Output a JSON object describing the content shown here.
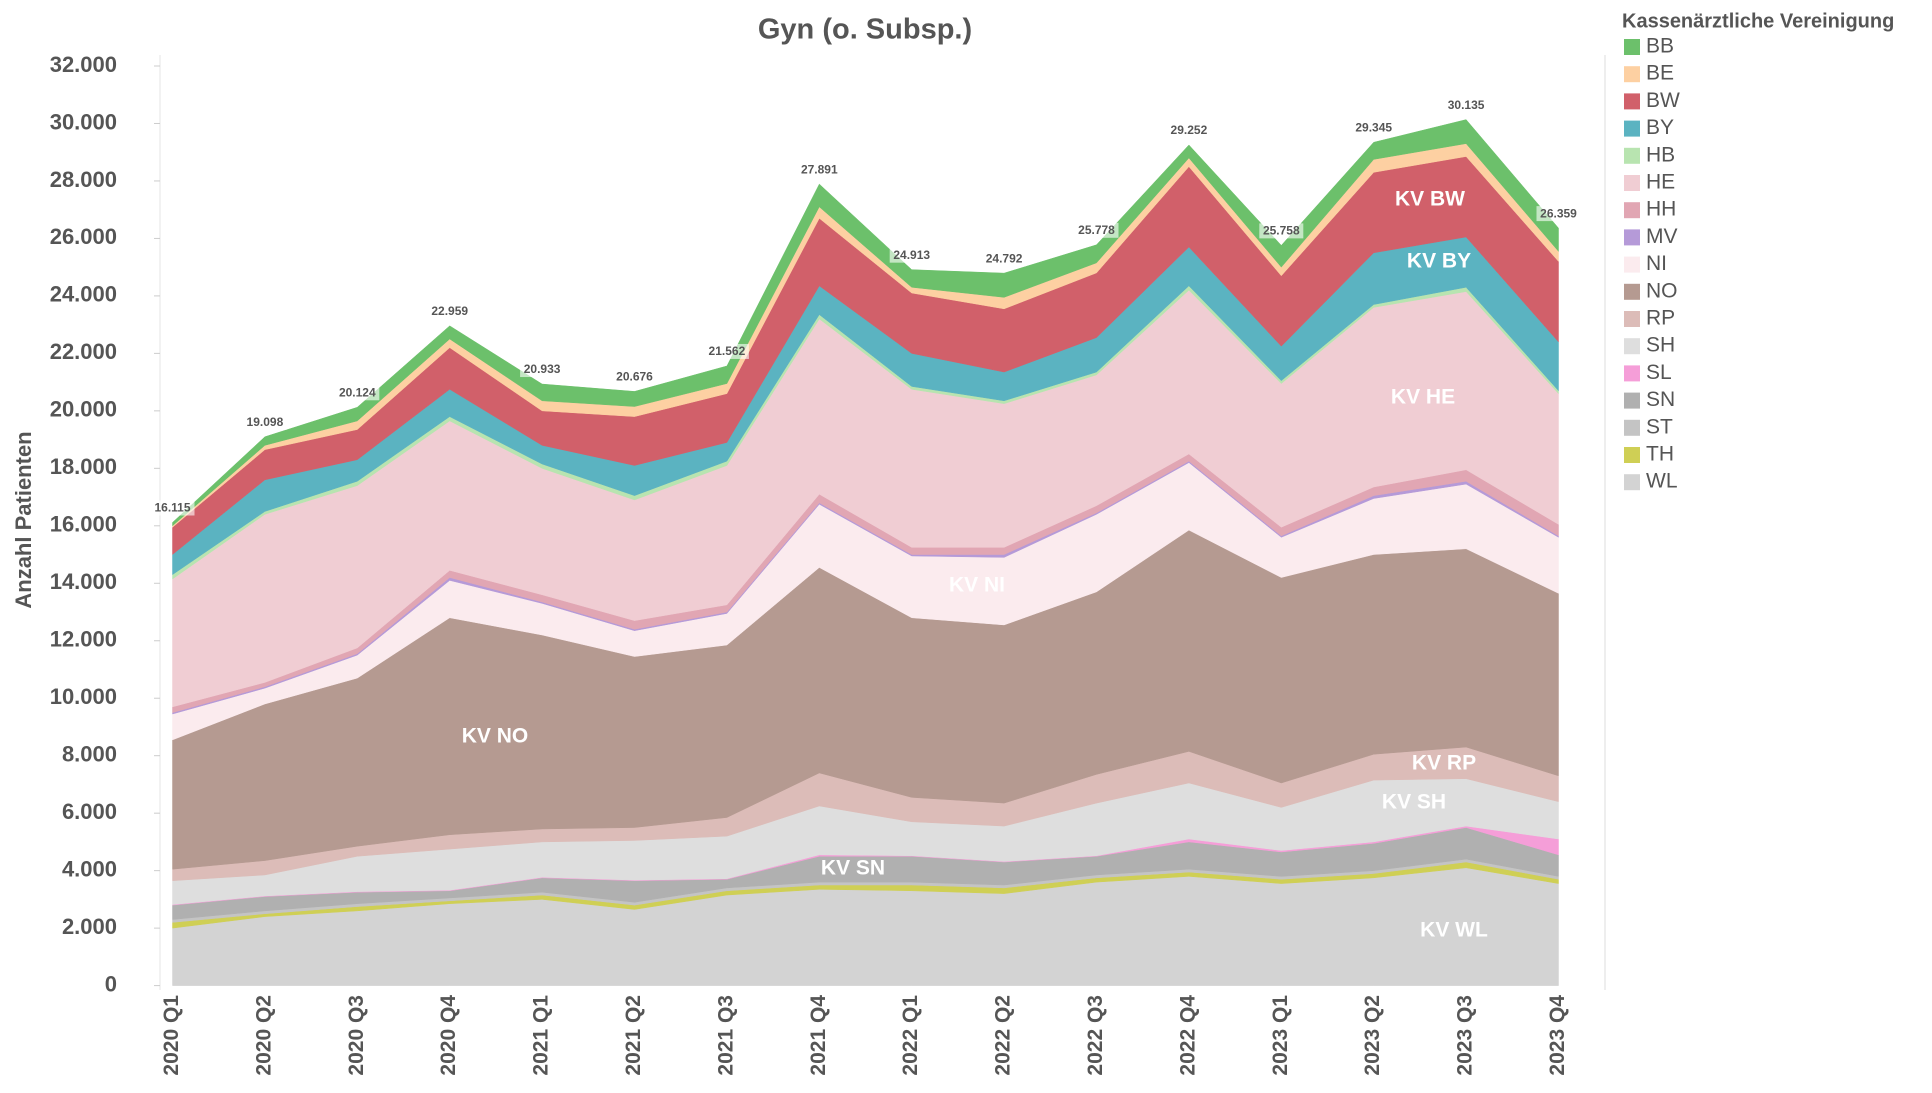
{
  "chart_data": {
    "type": "stacked_area",
    "title": "Gyn (o. Subsp.)",
    "y_label": "Anzahl Patienten",
    "legend_title": "Kassenärztliche Vereinigung",
    "legend": "right",
    "grid": false,
    "categories": [
      "2020 Q1",
      "2020 Q2",
      "2020 Q3",
      "2020 Q4",
      "2021 Q1",
      "2021 Q2",
      "2021 Q3",
      "2021 Q4",
      "2022 Q1",
      "2022 Q2",
      "2022 Q3",
      "2022 Q4",
      "2023 Q1",
      "2023 Q2",
      "2023 Q3",
      "2023 Q4"
    ],
    "ylim": [
      0,
      32000
    ],
    "yticks": [
      0,
      {
        "value": 2000,
        "label": "2.000"
      },
      {
        "value": 4000,
        "label": "4.000"
      },
      {
        "value": 6000,
        "label": "6.000"
      },
      {
        "value": 8000,
        "label": "8.000"
      },
      {
        "value": 10000,
        "label": "10.000"
      },
      {
        "value": 12000,
        "label": "12.000"
      },
      {
        "value": 14000,
        "label": "14.000"
      },
      {
        "value": 16000,
        "label": "16.000"
      },
      {
        "value": 18000,
        "label": "18.000"
      },
      {
        "value": 20000,
        "label": "20.000"
      },
      {
        "value": 22000,
        "label": "22.000"
      },
      {
        "value": 24000,
        "label": "24.000"
      },
      {
        "value": 26000,
        "label": "26.000"
      },
      {
        "value": 28000,
        "label": "28.000"
      },
      {
        "value": 30000,
        "label": "30.000"
      },
      {
        "value": 32000,
        "label": "32.000"
      }
    ],
    "series": [
      {
        "name": "BB",
        "color": "#6cc06b",
        "values": [
          115,
          298,
          474,
          459,
          583,
          526,
          612,
          791,
          613,
          842,
          628,
          452,
          758,
          595,
          835,
          809
        ]
      },
      {
        "name": "BE",
        "color": "#fdd0a2",
        "values": [
          50,
          150,
          300,
          300,
          350,
          350,
          350,
          400,
          200,
          400,
          350,
          300,
          300,
          450,
          450,
          350
        ]
      },
      {
        "name": "BW",
        "color": "#d1606a",
        "values": [
          950,
          1050,
          1050,
          1450,
          1200,
          1700,
          1700,
          2350,
          2100,
          2200,
          2250,
          2800,
          2450,
          2800,
          2800,
          2800
        ]
      },
      {
        "name": "BY",
        "color": "#5bb3c1",
        "values": [
          700,
          1100,
          750,
          950,
          650,
          1050,
          650,
          1000,
          1150,
          1000,
          1200,
          1350,
          1200,
          1800,
          1750,
          1700
        ]
      },
      {
        "name": "HB",
        "color": "#b8e4b0",
        "values": [
          150,
          100,
          150,
          150,
          150,
          150,
          150,
          150,
          100,
          100,
          100,
          150,
          100,
          100,
          150,
          100
        ]
      },
      {
        "name": "HE",
        "color": "#f0cdd3",
        "values": [
          4450,
          5850,
          5650,
          5200,
          4400,
          4200,
          4850,
          6100,
          5500,
          5000,
          4550,
          5700,
          5000,
          6250,
          6200,
          4550
        ]
      },
      {
        "name": "HH",
        "color": "#e1a6b3",
        "values": [
          200,
          150,
          200,
          250,
          250,
          300,
          250,
          300,
          250,
          250,
          250,
          250,
          300,
          300,
          400,
          400
        ]
      },
      {
        "name": "MV",
        "color": "#b59ad8",
        "values": [
          50,
          50,
          50,
          100,
          50,
          50,
          50,
          50,
          50,
          100,
          50,
          50,
          50,
          100,
          100,
          50
        ]
      },
      {
        "name": "NI",
        "color": "#fbebee",
        "values": [
          900,
          550,
          800,
          1300,
          1100,
          900,
          1100,
          2200,
          2150,
          2350,
          2700,
          2350,
          1400,
          1950,
          2250,
          1950
        ]
      },
      {
        "name": "NO",
        "color": "#b59a91",
        "values": [
          4500,
          5450,
          5850,
          7550,
          6750,
          5950,
          6000,
          7150,
          6250,
          6200,
          6350,
          7700,
          7150,
          6950,
          6900,
          6350
        ]
      },
      {
        "name": "RP",
        "color": "#dcbcb8",
        "values": [
          400,
          500,
          350,
          500,
          450,
          450,
          650,
          1150,
          850,
          800,
          1000,
          1100,
          850,
          900,
          1100,
          900
        ]
      },
      {
        "name": "SH",
        "color": "#dedede",
        "values": [
          830,
          730,
          1230,
          1430,
          1230,
          1380,
          1480,
          1700,
          1180,
          1230,
          1830,
          1950,
          1500,
          2150,
          1650,
          1300
        ]
      },
      {
        "name": "SL",
        "color": "#f59ed8",
        "values": [
          20,
          20,
          20,
          20,
          20,
          20,
          20,
          50,
          20,
          20,
          20,
          100,
          50,
          50,
          50,
          550
        ]
      },
      {
        "name": "SN",
        "color": "#b0b0b0",
        "values": [
          500,
          500,
          400,
          250,
          500,
          750,
          300,
          900,
          900,
          800,
          650,
          950,
          850,
          950,
          1100,
          750
        ]
      },
      {
        "name": "ST",
        "color": "#c4c4c4",
        "values": [
          100,
          100,
          100,
          100,
          100,
          100,
          100,
          100,
          100,
          100,
          100,
          100,
          100,
          100,
          100,
          100
        ]
      },
      {
        "name": "TH",
        "color": "#cfcf55",
        "values": [
          200,
          100,
          150,
          100,
          150,
          150,
          150,
          150,
          200,
          200,
          150,
          150,
          150,
          150,
          200,
          150
        ]
      },
      {
        "name": "WL",
        "color": "#d3d3d3",
        "values": [
          2000,
          2400,
          2600,
          2850,
          3000,
          2650,
          3150,
          3350,
          3300,
          3200,
          3600,
          3800,
          3550,
          3750,
          4100,
          3550
        ]
      }
    ],
    "totals": {
      "values": [
        16115,
        19098,
        20124,
        22959,
        20933,
        20676,
        21562,
        27891,
        24913,
        24792,
        25778,
        29252,
        25758,
        29345,
        30135,
        26359
      ],
      "value_labels": [
        "16.115",
        "19.098",
        "20.124",
        "22.959",
        "20.933",
        "20.676",
        "21.562",
        "27.891",
        "24.913",
        "24.792",
        "25.778",
        "29.252",
        "25.758",
        "29.345",
        "30.135",
        "26.359"
      ]
    },
    "annotations": [
      "KV BW",
      "KV BY",
      "KV HE",
      "KV NI",
      "KV NO",
      "KV RP",
      "KV SH",
      "KV SN",
      "KV WL"
    ]
  }
}
